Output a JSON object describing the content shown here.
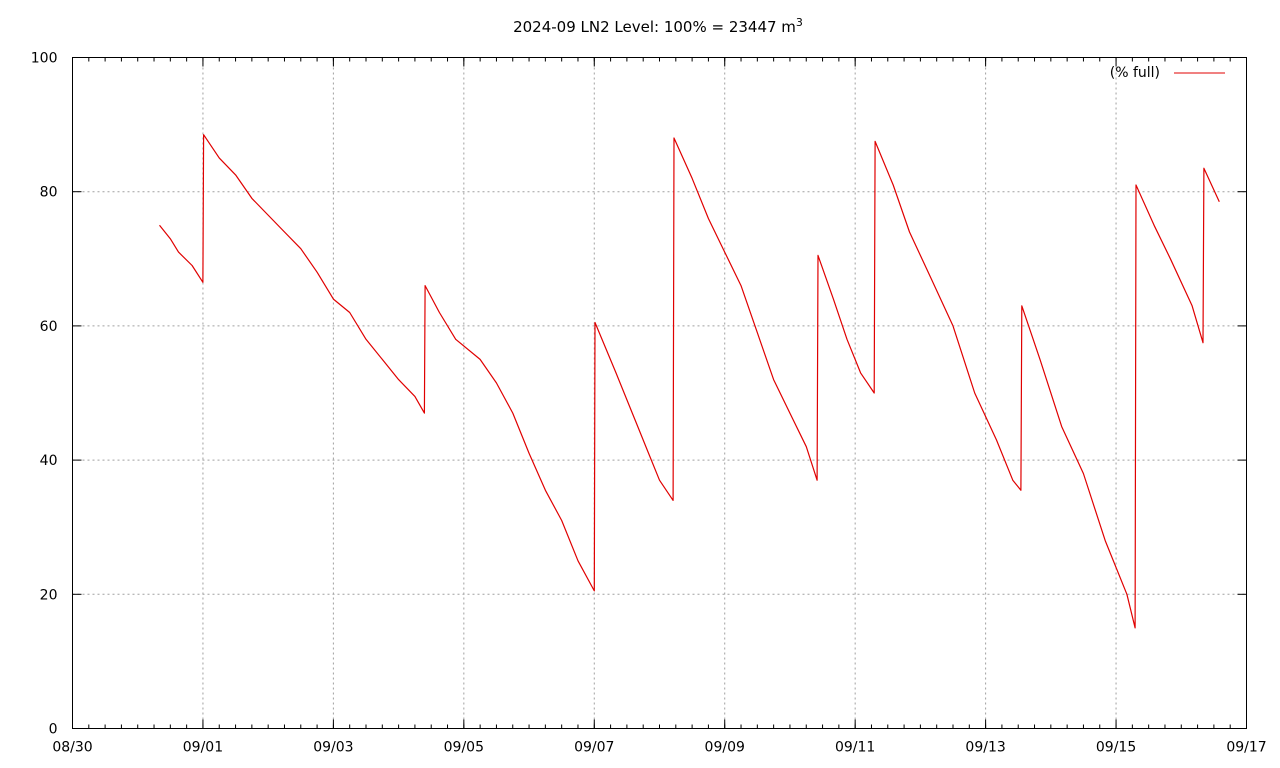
{
  "chart_data": {
    "type": "line",
    "title": "2024-09 LN2 Level: 100% = 23447 m",
    "title_superscript": "3",
    "xlabel": "",
    "ylabel": "",
    "xlim": [
      "2024-08-30",
      "2024-09-17"
    ],
    "ylim": [
      0,
      100
    ],
    "x_ticks": [
      "08/30",
      "09/01",
      "09/03",
      "09/05",
      "09/07",
      "09/09",
      "09/11",
      "09/13",
      "09/15",
      "09/17"
    ],
    "y_ticks": [
      "0",
      "20",
      "40",
      "60",
      "80",
      "100"
    ],
    "grid": true,
    "legend_position": "top-right",
    "series": [
      {
        "name": "(% full)",
        "color": "#e00000",
        "points": [
          [
            "2024-08-31 08:00",
            75.0
          ],
          [
            "2024-08-31 12:00",
            73.0
          ],
          [
            "2024-08-31 15:00",
            71.0
          ],
          [
            "2024-08-31 20:00",
            69.0
          ],
          [
            "2024-09-01 00:00",
            66.5
          ],
          [
            "2024-09-01 00:15",
            88.5
          ],
          [
            "2024-09-01 06:00",
            85.0
          ],
          [
            "2024-09-01 12:00",
            82.5
          ],
          [
            "2024-09-01 18:00",
            79.0
          ],
          [
            "2024-09-02 06:00",
            74.0
          ],
          [
            "2024-09-02 12:00",
            71.5
          ],
          [
            "2024-09-02 18:00",
            68.0
          ],
          [
            "2024-09-03 00:00",
            64.0
          ],
          [
            "2024-09-03 06:00",
            62.0
          ],
          [
            "2024-09-03 12:00",
            58.0
          ],
          [
            "2024-09-03 18:00",
            55.0
          ],
          [
            "2024-09-04 00:00",
            52.0
          ],
          [
            "2024-09-04 06:00",
            49.5
          ],
          [
            "2024-09-04 09:30",
            47.0
          ],
          [
            "2024-09-04 09:45",
            66.0
          ],
          [
            "2024-09-04 15:00",
            62.0
          ],
          [
            "2024-09-04 21:00",
            58.0
          ],
          [
            "2024-09-05 06:00",
            55.0
          ],
          [
            "2024-09-05 12:00",
            51.5
          ],
          [
            "2024-09-05 18:00",
            47.0
          ],
          [
            "2024-09-06 00:00",
            41.0
          ],
          [
            "2024-09-06 06:00",
            35.5
          ],
          [
            "2024-09-06 12:00",
            31.0
          ],
          [
            "2024-09-06 18:00",
            25.0
          ],
          [
            "2024-09-07 00:00",
            20.5
          ],
          [
            "2024-09-07 00:15",
            60.5
          ],
          [
            "2024-09-07 08:00",
            53.0
          ],
          [
            "2024-09-07 14:00",
            47.0
          ],
          [
            "2024-09-07 20:00",
            41.0
          ],
          [
            "2024-09-08 00:00",
            37.0
          ],
          [
            "2024-09-08 05:00",
            34.0
          ],
          [
            "2024-09-08 05:20",
            88.0
          ],
          [
            "2024-09-08 12:00",
            82.0
          ],
          [
            "2024-09-08 18:00",
            76.0
          ],
          [
            "2024-09-09 00:00",
            71.0
          ],
          [
            "2024-09-09 06:00",
            66.0
          ],
          [
            "2024-09-09 12:00",
            59.0
          ],
          [
            "2024-09-09 18:00",
            52.0
          ],
          [
            "2024-09-10 00:00",
            47.0
          ],
          [
            "2024-09-10 06:00",
            42.0
          ],
          [
            "2024-09-10 10:00",
            37.0
          ],
          [
            "2024-09-10 10:20",
            70.5
          ],
          [
            "2024-09-10 16:00",
            64.0
          ],
          [
            "2024-09-10 21:00",
            58.0
          ],
          [
            "2024-09-11 02:00",
            53.0
          ],
          [
            "2024-09-11 07:00",
            50.0
          ],
          [
            "2024-09-11 07:20",
            87.5
          ],
          [
            "2024-09-11 14:00",
            81.0
          ],
          [
            "2024-09-11 20:00",
            74.0
          ],
          [
            "2024-09-12 04:00",
            67.0
          ],
          [
            "2024-09-12 12:00",
            60.0
          ],
          [
            "2024-09-12 20:00",
            50.0
          ],
          [
            "2024-09-13 04:00",
            43.0
          ],
          [
            "2024-09-13 10:00",
            37.0
          ],
          [
            "2024-09-13 13:00",
            35.5
          ],
          [
            "2024-09-13 13:20",
            63.0
          ],
          [
            "2024-09-13 20:00",
            55.0
          ],
          [
            "2024-09-14 04:00",
            45.0
          ],
          [
            "2024-09-14 12:00",
            38.0
          ],
          [
            "2024-09-14 20:00",
            28.0
          ],
          [
            "2024-09-15 04:00",
            20.0
          ],
          [
            "2024-09-15 07:00",
            15.0
          ],
          [
            "2024-09-15 07:20",
            81.0
          ],
          [
            "2024-09-15 14:00",
            75.0
          ],
          [
            "2024-09-15 20:00",
            70.0
          ],
          [
            "2024-09-16 04:00",
            63.0
          ],
          [
            "2024-09-16 08:00",
            57.5
          ],
          [
            "2024-09-16 08:20",
            83.5
          ],
          [
            "2024-09-16 14:00",
            78.5
          ]
        ]
      }
    ]
  }
}
